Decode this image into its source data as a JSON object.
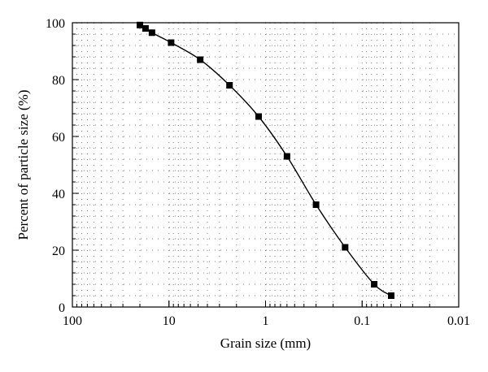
{
  "chart_data": {
    "type": "line",
    "title": "",
    "xlabel": "Grain size (mm)",
    "ylabel": "Percent of particle size (%)",
    "x_scale": "log",
    "x_reversed": true,
    "xlim": [
      100,
      0.01
    ],
    "ylim": [
      0,
      100
    ],
    "x_ticks": [
      100,
      10,
      1,
      0.1,
      0.01
    ],
    "x_tick_labels": [
      "100",
      "10",
      "1",
      "0.1",
      "0.01"
    ],
    "y_ticks": [
      0,
      20,
      40,
      60,
      80,
      100
    ],
    "y_tick_labels": [
      "0",
      "20",
      "40",
      "60",
      "80",
      "100"
    ],
    "grid": "dotted minor and major",
    "marker": "square",
    "line_color": "#000000",
    "series": [
      {
        "x": [
          20,
          17.5,
          15,
          9.5,
          4.75,
          2.36,
          1.18,
          0.6,
          0.3,
          0.15,
          0.075,
          0.05
        ],
        "y": [
          99.2,
          98,
          96.5,
          93,
          87,
          78,
          67,
          53,
          36,
          21,
          8,
          4
        ]
      }
    ]
  }
}
